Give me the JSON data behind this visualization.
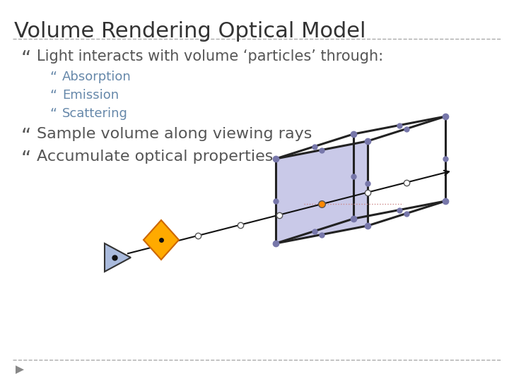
{
  "title": "Volume Rendering Optical Model",
  "title_fontsize": 22,
  "title_color": "#333333",
  "bg_color": "#ffffff",
  "bullet_color": "#555555",
  "sub_bullet_color": "#6688aa",
  "dashed_line_color": "#aaaaaa",
  "bullet1": "Light interacts with volume ‘particles’ through:",
  "sub_bullets": [
    "Absorption",
    "Emission",
    "Scattering"
  ],
  "bullet2": "Sample volume along viewing rays",
  "bullet3": "Accumulate optical properties",
  "bullet_fontsize": 15,
  "sub_bullet_fontsize": 13,
  "cube_face_color": "#8888cc",
  "cube_face_alpha": 0.45,
  "cube_edge_color": "#222222",
  "cube_node_color": "#7777aa",
  "ray_color": "#111111",
  "sample_colors": [
    "#ffffff",
    "#ffffff",
    "#ffffff",
    "#ff8800",
    "#ffffff"
  ],
  "footer_dashed_color": "#aaaaaa",
  "arrow_color": "#111111"
}
